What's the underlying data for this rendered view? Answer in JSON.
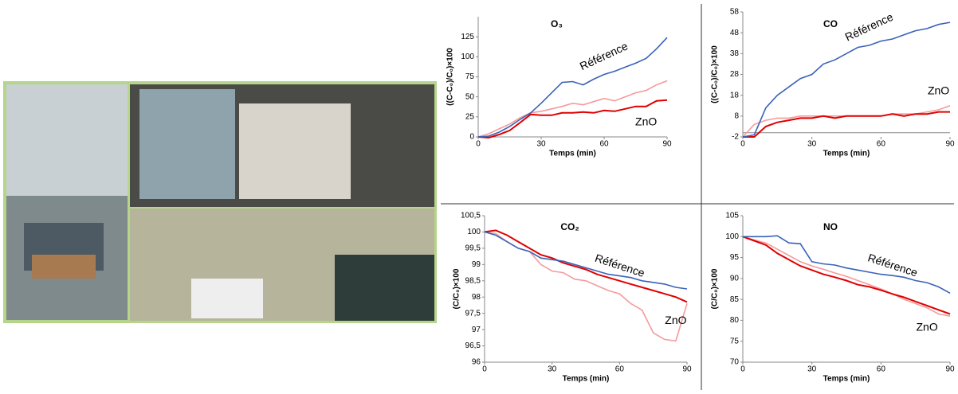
{
  "chart_data": [
    {
      "type": "line",
      "title": "O₃",
      "ylabel": "((C-C₀)/C₀)×100",
      "xlabel": "Temps (min)",
      "x": [
        0,
        5,
        10,
        15,
        20,
        25,
        30,
        35,
        40,
        45,
        50,
        55,
        60,
        65,
        70,
        75,
        80,
        85,
        90
      ],
      "xlim": [
        0,
        90
      ],
      "xticks": [
        0,
        30,
        60,
        90
      ],
      "ylim": [
        0,
        150
      ],
      "yticks": [
        0,
        25,
        50,
        75,
        100,
        125
      ],
      "series": [
        {
          "name": "Référence",
          "color": "#3a62b8",
          "values": [
            0,
            1,
            6,
            13,
            22,
            30,
            42,
            55,
            68,
            69,
            65,
            72,
            78,
            82,
            87,
            92,
            98,
            110,
            124
          ]
        },
        {
          "name": "ZnO",
          "color": "#e00000",
          "values": [
            0,
            -1,
            3,
            8,
            18,
            28,
            27,
            27,
            30,
            30,
            31,
            30,
            33,
            32,
            35,
            38,
            38,
            45,
            46
          ]
        },
        {
          "color": "#f59a9a",
          "values": [
            0,
            4,
            10,
            16,
            24,
            30,
            32,
            35,
            38,
            42,
            40,
            44,
            48,
            45,
            50,
            55,
            58,
            65,
            70
          ]
        }
      ]
    },
    {
      "type": "line",
      "title": "CO",
      "ylabel": "((C-C₀)/C₀)×100",
      "xlabel": "Temps (min)",
      "x": [
        0,
        5,
        10,
        15,
        20,
        25,
        30,
        35,
        40,
        45,
        50,
        55,
        60,
        65,
        70,
        75,
        80,
        85,
        90
      ],
      "xlim": [
        0,
        90
      ],
      "xticks": [
        0,
        30,
        60,
        90
      ],
      "ylim": [
        -2,
        58
      ],
      "yticks": [
        -2,
        8,
        18,
        28,
        38,
        48,
        58
      ],
      "series": [
        {
          "name": "Référence",
          "color": "#3a62b8",
          "values": [
            -2,
            -1,
            12,
            18,
            22,
            26,
            28,
            33,
            35,
            38,
            41,
            42,
            44,
            45,
            47,
            49,
            50,
            52,
            53
          ]
        },
        {
          "name": "ZnO",
          "color": "#e00000",
          "values": [
            -2,
            -2,
            3,
            5,
            6,
            7,
            7,
            8,
            7,
            8,
            8,
            8,
            8,
            9,
            8,
            9,
            9,
            10,
            10
          ]
        },
        {
          "color": "#f59a9a",
          "values": [
            -2,
            4,
            6,
            7,
            7,
            8,
            8,
            8,
            8,
            8,
            8,
            8,
            8,
            9,
            9,
            9,
            10,
            11,
            13
          ]
        }
      ]
    },
    {
      "type": "line",
      "title": "CO₂",
      "ylabel": "(C/C₀)×100",
      "xlabel": "Temps (min)",
      "x": [
        0,
        5,
        10,
        15,
        20,
        25,
        30,
        35,
        40,
        45,
        50,
        55,
        60,
        65,
        70,
        75,
        80,
        85,
        90
      ],
      "xlim": [
        0,
        90
      ],
      "xticks": [
        0,
        30,
        60,
        90
      ],
      "ylim": [
        96,
        100.5
      ],
      "yticks": [
        96,
        {
          "value": 96.5,
          "label": "96,5"
        },
        97,
        {
          "value": 97.5,
          "label": "97,5"
        },
        98,
        {
          "value": 98.5,
          "label": "98,5"
        },
        99,
        {
          "value": 99.5,
          "label": "99,5"
        },
        100,
        {
          "value": 100.5,
          "label": "100,5"
        }
      ],
      "series": [
        {
          "name": "Référence",
          "color": "#3a62b8",
          "values": [
            100,
            99.9,
            99.7,
            99.5,
            99.4,
            99.2,
            99.15,
            99.1,
            99.0,
            98.9,
            98.8,
            98.7,
            98.65,
            98.6,
            98.5,
            98.45,
            98.4,
            98.3,
            98.25
          ]
        },
        {
          "name": "ZnO",
          "color": "#e00000",
          "values": [
            100,
            100.05,
            99.9,
            99.7,
            99.5,
            99.3,
            99.2,
            99.05,
            98.95,
            98.85,
            98.7,
            98.6,
            98.5,
            98.4,
            98.3,
            98.2,
            98.1,
            98.0,
            97.85
          ]
        },
        {
          "color": "#f59a9a",
          "values": [
            100,
            99.95,
            99.7,
            99.5,
            99.4,
            99.0,
            98.8,
            98.75,
            98.55,
            98.5,
            98.35,
            98.2,
            98.1,
            97.8,
            97.6,
            96.9,
            96.7,
            96.65,
            97.8
          ]
        }
      ]
    },
    {
      "type": "line",
      "title": "NO",
      "ylabel": "(C/C₀)×100",
      "xlabel": "Temps (min)",
      "x": [
        0,
        5,
        10,
        15,
        20,
        25,
        30,
        35,
        40,
        45,
        50,
        55,
        60,
        65,
        70,
        75,
        80,
        85,
        90
      ],
      "xlim": [
        0,
        90
      ],
      "xticks": [
        0,
        30,
        60,
        90
      ],
      "ylim": [
        70,
        105
      ],
      "yticks": [
        70,
        75,
        80,
        85,
        90,
        95,
        100,
        105
      ],
      "series": [
        {
          "name": "Référence",
          "color": "#3a62b8",
          "values": [
            100,
            100,
            100,
            100.2,
            98.5,
            98.3,
            94,
            93.5,
            93.2,
            92.5,
            92,
            91.5,
            91,
            90.7,
            90.3,
            89.5,
            89,
            88,
            86.5
          ]
        },
        {
          "name": "ZnO",
          "color": "#e00000",
          "values": [
            100,
            99,
            98,
            96,
            94.5,
            93,
            92,
            91,
            90.3,
            89.5,
            88.5,
            88,
            87.2,
            86.3,
            85.5,
            84.5,
            83.5,
            82.5,
            81.5
          ]
        },
        {
          "color": "#f59a9a",
          "values": [
            100,
            99.2,
            98.5,
            97,
            95.5,
            94,
            93,
            92.2,
            91.3,
            90.5,
            89.5,
            88.5,
            87.5,
            86.3,
            85,
            84,
            83,
            81.5,
            81
          ]
        }
      ]
    }
  ]
}
